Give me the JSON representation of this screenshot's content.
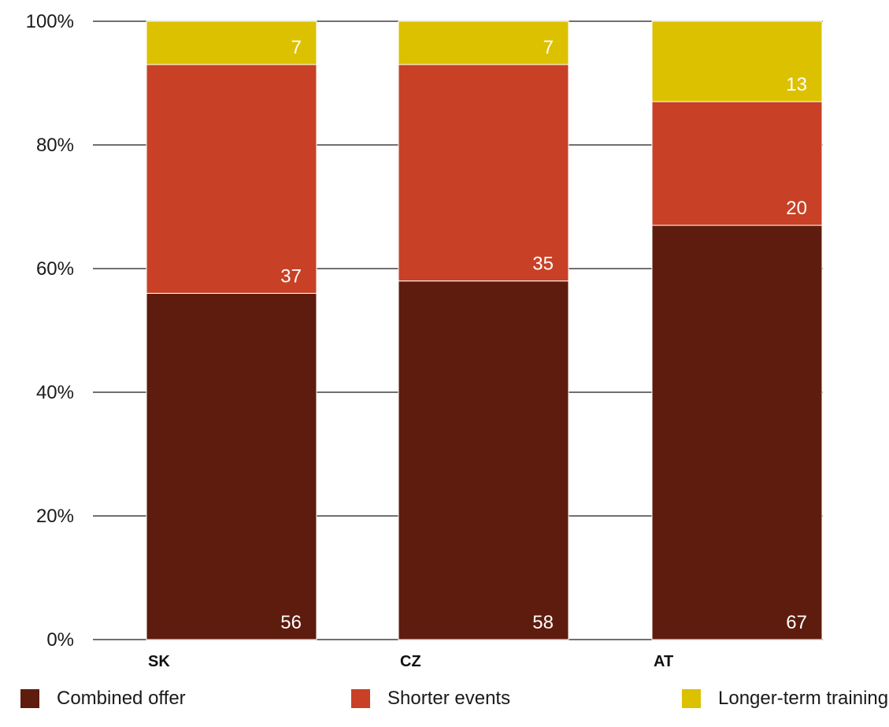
{
  "chart_data": {
    "type": "bar",
    "stacked": true,
    "categories": [
      "SK",
      "CZ",
      "AT"
    ],
    "series": [
      {
        "name": "Combined offer",
        "values": [
          56,
          58,
          67
        ],
        "color": "#5e1c0e"
      },
      {
        "name": "Shorter events",
        "values": [
          37,
          35,
          20
        ],
        "color": "#c84126"
      },
      {
        "name": "Longer-term training",
        "values": [
          7,
          7,
          13
        ],
        "color": "#dcc100"
      }
    ],
    "ylim": [
      0,
      100
    ],
    "yticks": [
      "0%",
      "20%",
      "40%",
      "60%",
      "80%",
      "100%"
    ],
    "ytick_values": [
      0,
      20,
      40,
      60,
      80,
      100
    ],
    "grid": true,
    "legend_position": "bottom",
    "title": "",
    "xlabel": "",
    "ylabel": ""
  }
}
